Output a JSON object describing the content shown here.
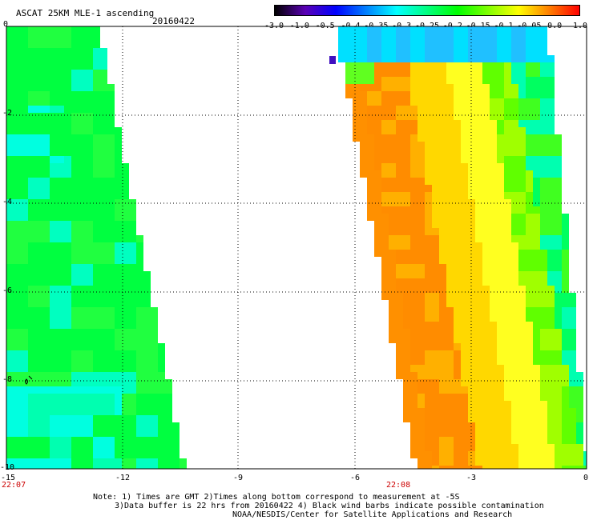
{
  "header": {
    "title": "ASCAT 25KM MLE-1 ascending",
    "date": "20160422"
  },
  "colorbar": {
    "labels": [
      "-3.0",
      "-1.0",
      "-0.5",
      "-0.4",
      "-0.35",
      "-0.3",
      "-0.25",
      "-0.2",
      "-0.15",
      "-0.1",
      "-0.05",
      "0.0",
      "1.0"
    ],
    "colors": [
      "#000000",
      "#7f00ff",
      "#0000ff",
      "#0080ff",
      "#00ffff",
      "#00ff80",
      "#00ff00",
      "#80ff00",
      "#ffff00",
      "#ffc000",
      "#ff8000",
      "#ff0000"
    ]
  },
  "axes": {
    "y_ticks": [
      "0",
      "-2",
      "-4",
      "-6",
      "-8",
      "-10"
    ],
    "x_ticks": [
      "-15",
      "-12",
      "-9",
      "-6",
      "-3",
      "0"
    ],
    "lon_range": [
      -15,
      0
    ],
    "lat_range": [
      -10,
      0
    ]
  },
  "times": {
    "left": "22:07",
    "right": "22:08"
  },
  "map_data": {
    "description_levels": "MLE values along two ascending swaths",
    "west_swath": {
      "dominant_value": -0.2,
      "cyan_patches": -0.3
    },
    "east_swath": {
      "dominant_value": -0.05,
      "max_value": 0.0,
      "north_edge_value": -0.35
    }
  },
  "footer": {
    "line1": "Note: 1) Times are GMT 2)Times along bottom correspond to measurement at -5S",
    "line2": "3)Data buffer is 22 hrs from 20160422 4) Black wind barbs indicate possible contamination",
    "line3": "NOAA/NESDIS/Center for Satellite Applications and Research"
  }
}
